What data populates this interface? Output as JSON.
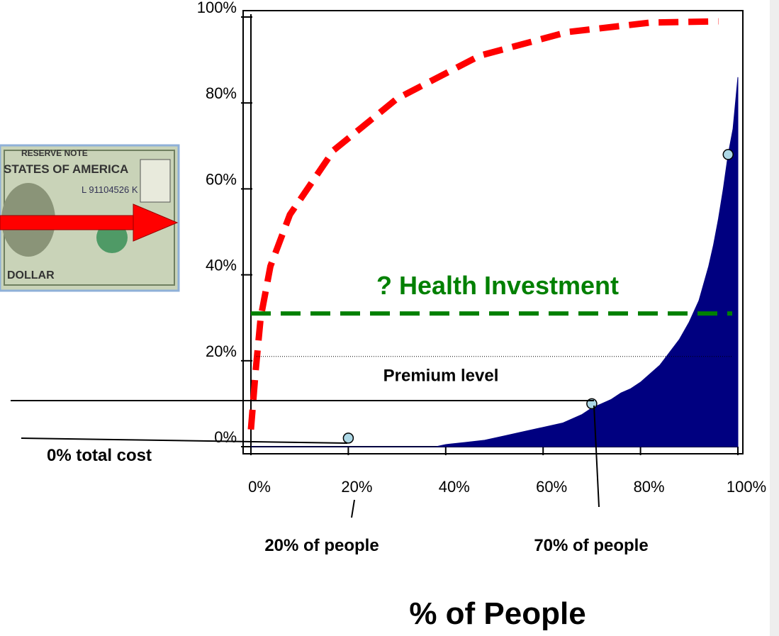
{
  "chart_data": {
    "type": "area",
    "x_label": "% of People",
    "xlim": [
      0,
      100
    ],
    "ylim": [
      0,
      100
    ],
    "xticks": [
      {
        "value": 0,
        "label": "0%"
      },
      {
        "value": 20,
        "label": "20%"
      },
      {
        "value": 40,
        "label": "40%"
      },
      {
        "value": 60,
        "label": "60%"
      },
      {
        "value": 80,
        "label": "80%"
      },
      {
        "value": 100,
        "label": "100%"
      }
    ],
    "yticks": [
      {
        "value": 0,
        "label": "0%"
      },
      {
        "value": 20,
        "label": "20%"
      },
      {
        "value": 40,
        "label": "40%"
      },
      {
        "value": 60,
        "label": "60%"
      },
      {
        "value": 80,
        "label": "80%"
      },
      {
        "value": 100,
        "label": "100%"
      }
    ],
    "series": [
      {
        "type": "area",
        "color": "#000080",
        "x": [
          0,
          38,
          40,
          44,
          48,
          52,
          56,
          60,
          64,
          68,
          70,
          72,
          74,
          76,
          78,
          80,
          82,
          84,
          86,
          88,
          90,
          92,
          94,
          95,
          96,
          97,
          98,
          99,
          100
        ],
        "values": [
          0,
          0,
          0.5,
          1,
          1.5,
          2.5,
          3.5,
          4.5,
          5.5,
          7.5,
          9,
          10,
          11,
          12.5,
          13.5,
          15,
          17,
          19,
          22,
          25,
          29,
          34,
          42,
          47,
          53,
          60,
          68,
          74,
          86
        ]
      },
      {
        "type": "line",
        "color": "#ff0000",
        "style": "dashed",
        "x": [
          0,
          1,
          2,
          4,
          8,
          17,
          30,
          47,
          65,
          82,
          96
        ],
        "values": [
          4,
          18,
          30,
          42,
          54,
          69,
          81,
          91,
          96.5,
          98.7,
          99
        ]
      }
    ],
    "points": {
      "color": "#add8e6",
      "x": [
        20,
        70,
        98
      ],
      "values": [
        2,
        10,
        68
      ]
    },
    "hlines": [
      {
        "value": 31,
        "color": "#008000",
        "style": "dashed",
        "label": "? Health Investment"
      },
      {
        "value": 21,
        "color": "#000000",
        "style": "dotted",
        "label": "Premium level"
      }
    ],
    "annotations": [
      "0% total cost",
      "20% of people",
      "70% of people"
    ]
  },
  "image": {
    "texts": [
      "RESERVE NOTE",
      "STATES OF AMERICA",
      "L 91104526 K",
      "DOLLAR"
    ]
  }
}
